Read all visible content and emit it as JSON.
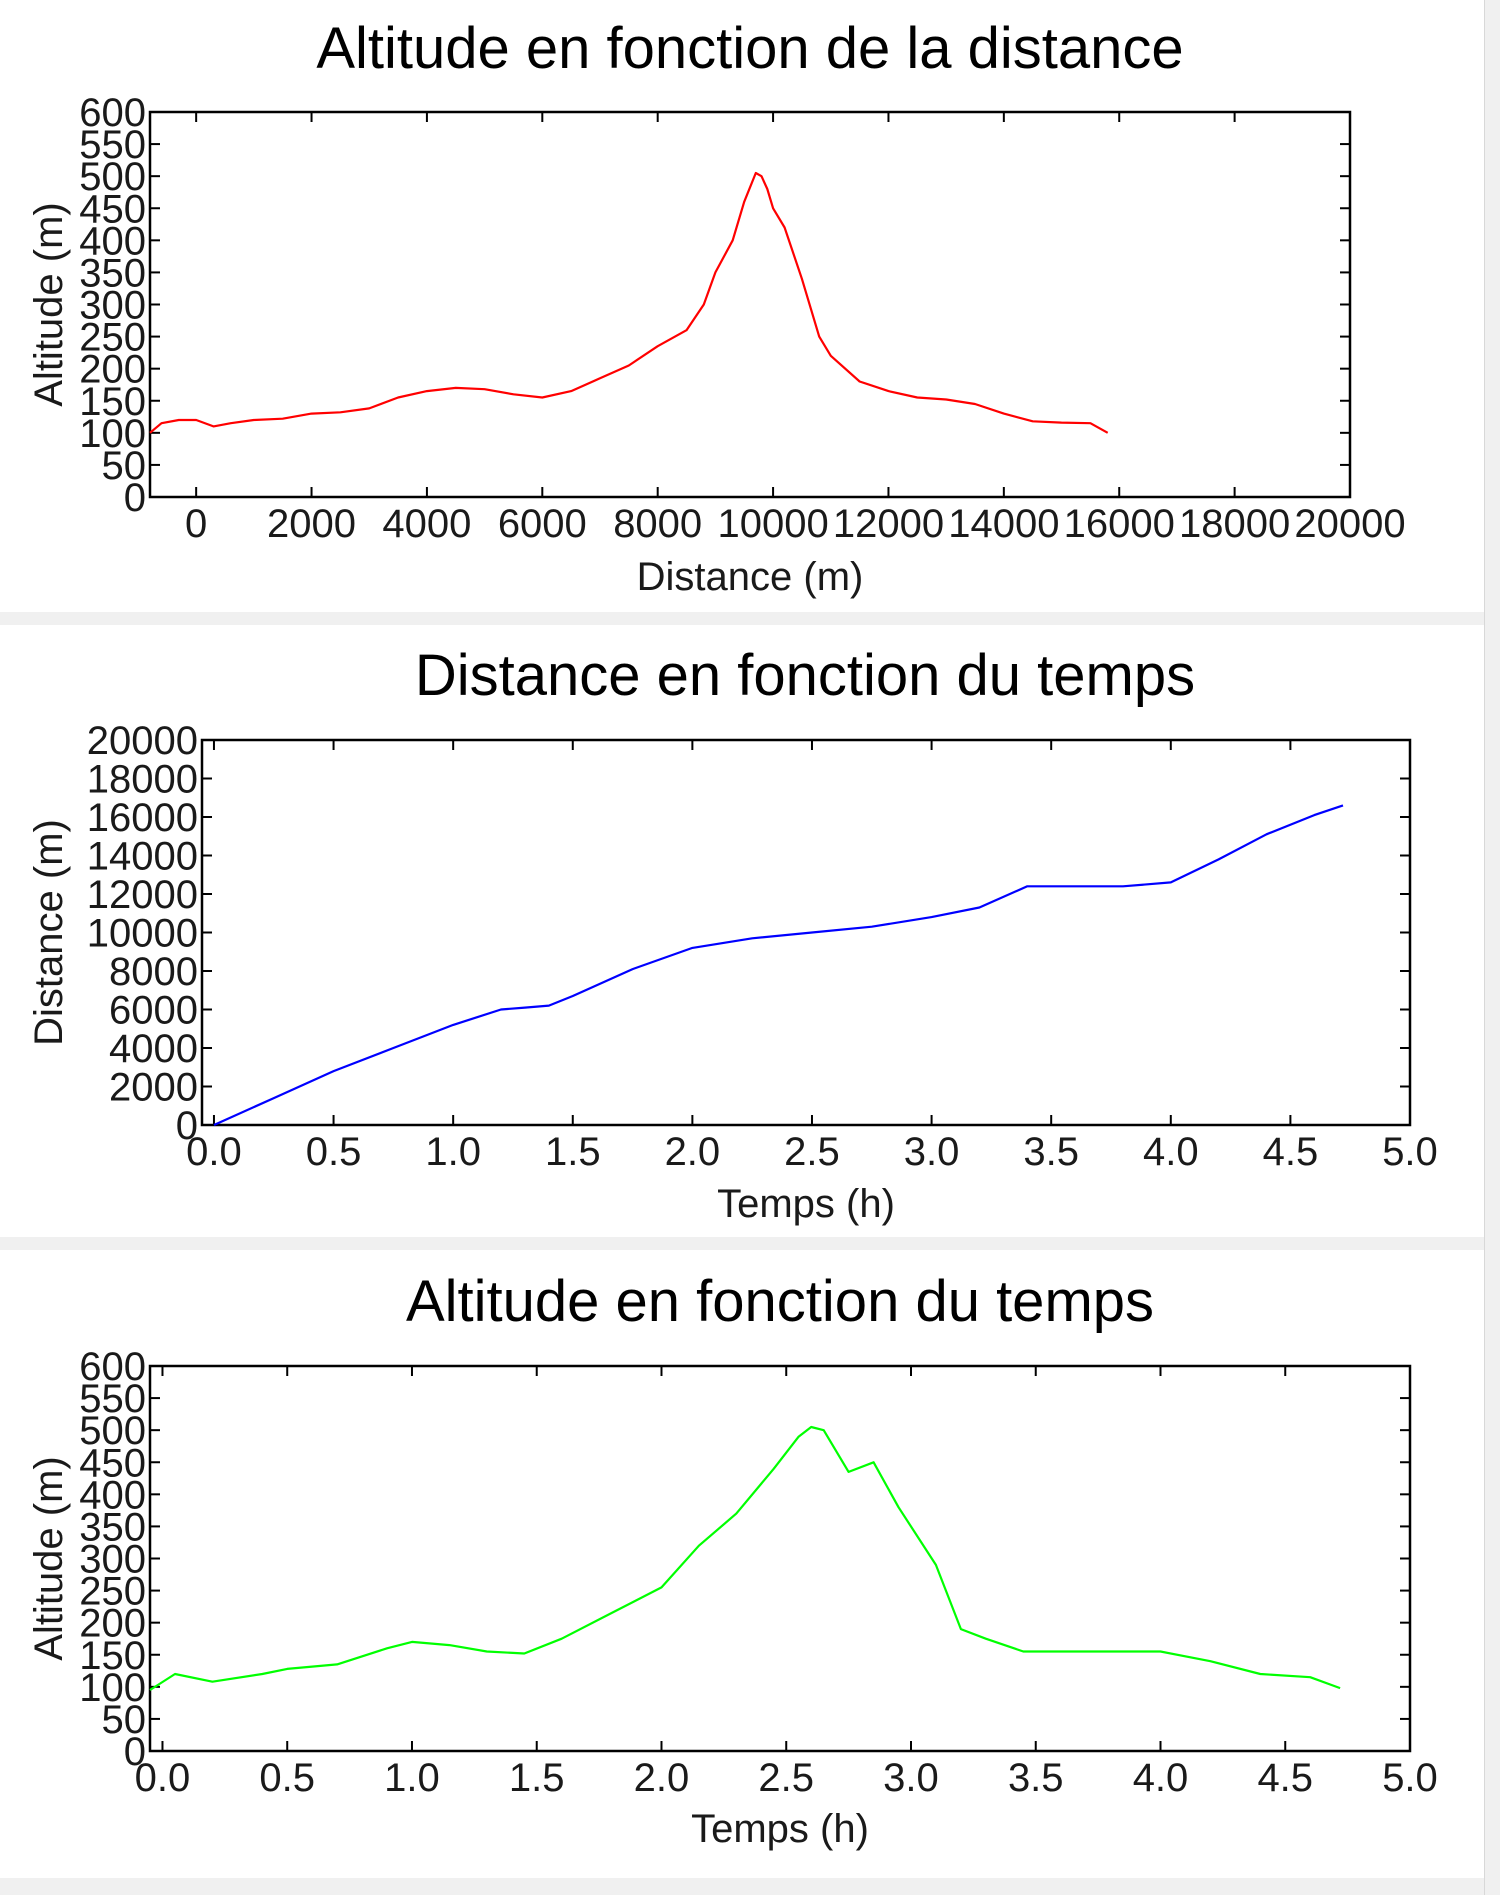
{
  "chart_data": [
    {
      "type": "line",
      "title": "Altitude en fonction de la distance",
      "xlabel": "Distance (m)",
      "ylabel": "Altitude (m)",
      "xlim": [
        -800,
        20000
      ],
      "ylim": [
        0,
        600
      ],
      "xticks": [
        "0",
        "2000",
        "4000",
        "6000",
        "8000",
        "10000",
        "12000",
        "14000",
        "16000",
        "18000",
        "20000"
      ],
      "yticks": [
        "0",
        "50",
        "100",
        "150",
        "200",
        "250",
        "300",
        "350",
        "400",
        "450",
        "500",
        "550",
        "600"
      ],
      "grid": false,
      "series": [
        {
          "color": "#ff0000",
          "x": [
            -800,
            -600,
            -300,
            0,
            300,
            600,
            1000,
            1500,
            2000,
            2500,
            3000,
            3500,
            4000,
            4500,
            5000,
            5500,
            6000,
            6500,
            7000,
            7500,
            8000,
            8500,
            8800,
            9000,
            9300,
            9500,
            9700,
            9800,
            9900,
            10000,
            10200,
            10500,
            10800,
            11000,
            11500,
            12000,
            12500,
            13000,
            13500,
            14000,
            14500,
            15000,
            15500,
            15800
          ],
          "y": [
            100,
            115,
            120,
            120,
            110,
            115,
            120,
            122,
            130,
            132,
            138,
            155,
            165,
            170,
            168,
            160,
            155,
            165,
            185,
            205,
            235,
            260,
            300,
            350,
            400,
            460,
            505,
            500,
            480,
            450,
            420,
            340,
            250,
            220,
            180,
            165,
            155,
            152,
            145,
            130,
            118,
            116,
            115,
            100
          ]
        }
      ]
    },
    {
      "type": "line",
      "title": "Distance en fonction du temps",
      "xlabel": "Temps (h)",
      "ylabel": "Distance (m)",
      "xlim": [
        -0.05,
        5.0
      ],
      "ylim": [
        0,
        20000
      ],
      "xticks": [
        "0.0",
        "0.5",
        "1.0",
        "1.5",
        "2.0",
        "2.5",
        "3.0",
        "3.5",
        "4.0",
        "4.5",
        "5.0"
      ],
      "yticks": [
        "0",
        "2000",
        "4000",
        "6000",
        "8000",
        "10000",
        "12000",
        "14000",
        "16000",
        "18000",
        "20000"
      ],
      "grid": false,
      "series": [
        {
          "color": "#0000ff",
          "x": [
            0.0,
            0.25,
            0.5,
            0.75,
            1.0,
            1.2,
            1.3,
            1.4,
            1.5,
            1.75,
            2.0,
            2.25,
            2.5,
            2.75,
            3.0,
            3.2,
            3.4,
            3.6,
            3.8,
            4.0,
            4.2,
            4.4,
            4.6,
            4.72
          ],
          "y": [
            0,
            1400,
            2800,
            4000,
            5200,
            6000,
            6100,
            6200,
            6700,
            8100,
            9200,
            9700,
            10000,
            10300,
            10800,
            11300,
            12400,
            12400,
            12400,
            12600,
            13800,
            15100,
            16100,
            16600
          ]
        }
      ]
    },
    {
      "type": "line",
      "title": "Altitude en fonction du temps",
      "xlabel": "Temps (h)",
      "ylabel": "Altitude (m)",
      "xlim": [
        -0.05,
        5.0
      ],
      "ylim": [
        0,
        600
      ],
      "xticks": [
        "0.0",
        "0.5",
        "1.0",
        "1.5",
        "2.0",
        "2.5",
        "3.0",
        "3.5",
        "4.0",
        "4.5",
        "5.0"
      ],
      "yticks": [
        "0",
        "50",
        "100",
        "150",
        "200",
        "250",
        "300",
        "350",
        "400",
        "450",
        "500",
        "550",
        "600"
      ],
      "grid": false,
      "series": [
        {
          "color": "#00ff00",
          "x": [
            -0.05,
            0.05,
            0.2,
            0.4,
            0.5,
            0.7,
            0.9,
            1.0,
            1.15,
            1.3,
            1.45,
            1.6,
            1.8,
            2.0,
            2.15,
            2.3,
            2.45,
            2.55,
            2.6,
            2.65,
            2.75,
            2.85,
            2.95,
            3.1,
            3.2,
            3.3,
            3.45,
            3.6,
            3.8,
            4.0,
            4.2,
            4.4,
            4.6,
            4.72
          ],
          "y": [
            95,
            120,
            108,
            120,
            128,
            135,
            160,
            170,
            165,
            155,
            152,
            175,
            215,
            255,
            320,
            370,
            440,
            490,
            505,
            500,
            435,
            450,
            380,
            290,
            190,
            175,
            155,
            155,
            155,
            155,
            140,
            120,
            115,
            98
          ]
        }
      ]
    }
  ]
}
